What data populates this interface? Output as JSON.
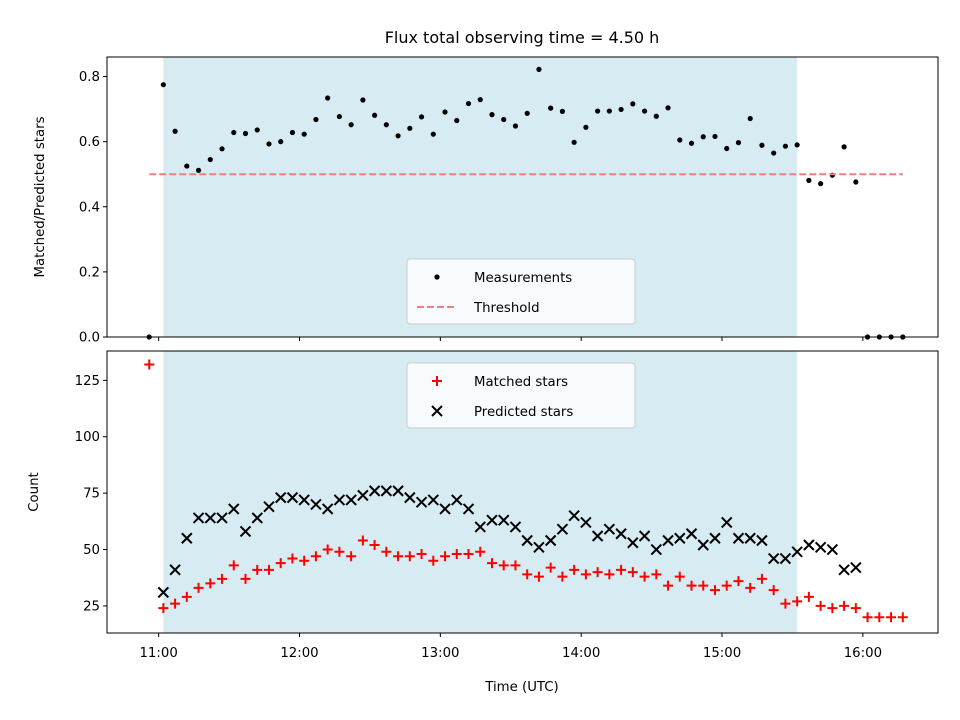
{
  "chart_data": {
    "title": "Flux total observing time = 4.50 h",
    "xlabel": "Time (UTC)",
    "x_tick_labels": [
      "11:00",
      "12:00",
      "13:00",
      "14:00",
      "15:00",
      "16:00"
    ],
    "x_ticks": [
      "11:00",
      "12:00",
      "13:00",
      "14:00",
      "15:00",
      "16:00"
    ],
    "xlim": [
      "10:38",
      "16:32"
    ],
    "shaded_span": [
      "11:02",
      "15:32"
    ],
    "colors": {
      "shade": "#add8e6",
      "threshold": "#f08080",
      "matched": "#ff0000",
      "predicted": "#000000",
      "measurements": "#000000"
    },
    "panels": [
      {
        "type": "scatter",
        "ylabel": "Matched/Predicted stars",
        "ylim": [
          0,
          0.86
        ],
        "y_ticks": [
          0.0,
          0.2,
          0.4,
          0.6,
          0.8
        ],
        "y_tick_labels": [
          "0.0",
          "0.2",
          "0.4",
          "0.6",
          "0.8"
        ],
        "legend_position": "lower center",
        "series": [
          {
            "name": "Measurements",
            "marker": "dot",
            "x": [
              "10:56",
              "11:02",
              "11:07",
              "11:12",
              "11:17",
              "11:22",
              "11:27",
              "11:32",
              "11:37",
              "11:42",
              "11:47",
              "11:52",
              "11:57",
              "12:02",
              "12:07",
              "12:12",
              "12:17",
              "12:22",
              "12:27",
              "12:32",
              "12:37",
              "12:42",
              "12:47",
              "12:52",
              "12:57",
              "13:02",
              "13:07",
              "13:12",
              "13:17",
              "13:22",
              "13:27",
              "13:32",
              "13:37",
              "13:42",
              "13:47",
              "13:52",
              "13:57",
              "14:02",
              "14:07",
              "14:12",
              "14:17",
              "14:22",
              "14:27",
              "14:32",
              "14:37",
              "14:42",
              "14:47",
              "14:52",
              "14:57",
              "15:02",
              "15:07",
              "15:12",
              "15:17",
              "15:22",
              "15:27",
              "15:32",
              "15:37",
              "15:42",
              "15:47",
              "15:52",
              "15:57",
              "16:02",
              "16:07",
              "16:12",
              "16:17"
            ],
            "y": [
              0.0,
              0.775,
              0.632,
              0.525,
              0.512,
              0.545,
              0.578,
              0.628,
              0.625,
              0.636,
              0.593,
              0.6,
              0.628,
              0.623,
              0.668,
              0.734,
              0.677,
              0.652,
              0.728,
              0.681,
              0.652,
              0.618,
              0.641,
              0.676,
              0.623,
              0.691,
              0.665,
              0.717,
              0.729,
              0.683,
              0.668,
              0.648,
              0.687,
              0.822,
              0.703,
              0.693,
              0.598,
              0.644,
              0.694,
              0.694,
              0.699,
              0.716,
              0.694,
              0.678,
              0.704,
              0.605,
              0.595,
              0.615,
              0.616,
              0.579,
              0.597,
              0.671,
              0.589,
              0.565,
              0.586,
              0.59,
              0.481,
              0.471,
              0.497,
              0.584,
              0.476,
              0.0,
              0.0,
              0.0,
              0.0
            ]
          },
          {
            "name": "Threshold",
            "type": "line",
            "style": "dashed",
            "x": [
              "10:56",
              "16:17"
            ],
            "y": [
              0.5,
              0.5
            ]
          }
        ]
      },
      {
        "type": "scatter",
        "ylabel": "Count",
        "ylim": [
          13,
          138
        ],
        "y_ticks": [
          25,
          50,
          75,
          100,
          125
        ],
        "y_tick_labels": [
          "25",
          "50",
          "75",
          "100",
          "125"
        ],
        "legend_position": "upper center",
        "series": [
          {
            "name": "Matched stars",
            "marker": "plus",
            "x": [
              "10:56",
              "11:02",
              "11:07",
              "11:12",
              "11:17",
              "11:22",
              "11:27",
              "11:32",
              "11:37",
              "11:42",
              "11:47",
              "11:52",
              "11:57",
              "12:02",
              "12:07",
              "12:12",
              "12:17",
              "12:22",
              "12:27",
              "12:32",
              "12:37",
              "12:42",
              "12:47",
              "12:52",
              "12:57",
              "13:02",
              "13:07",
              "13:12",
              "13:17",
              "13:22",
              "13:27",
              "13:32",
              "13:37",
              "13:42",
              "13:47",
              "13:52",
              "13:57",
              "14:02",
              "14:07",
              "14:12",
              "14:17",
              "14:22",
              "14:27",
              "14:32",
              "14:37",
              "14:42",
              "14:47",
              "14:52",
              "14:57",
              "15:02",
              "15:07",
              "15:12",
              "15:17",
              "15:22",
              "15:27",
              "15:32",
              "15:37",
              "15:42",
              "15:47",
              "15:52",
              "15:57",
              "16:02",
              "16:07",
              "16:12",
              "16:17"
            ],
            "y": [
              132,
              24,
              26,
              29,
              33,
              35,
              37,
              43,
              37,
              41,
              41,
              44,
              46,
              45,
              47,
              50,
              49,
              47,
              54,
              52,
              49,
              47,
              47,
              48,
              45,
              47,
              48,
              48,
              49,
              44,
              43,
              43,
              39,
              38,
              42,
              38,
              41,
              39,
              40,
              39,
              41,
              40,
              38,
              39,
              34,
              38,
              34,
              34,
              32,
              34,
              36,
              33,
              37,
              32,
              26,
              27,
              29,
              25,
              24,
              25,
              24,
              20,
              20,
              20,
              20
            ]
          },
          {
            "name": "Predicted stars",
            "marker": "x",
            "x": [
              "11:02",
              "11:07",
              "11:12",
              "11:17",
              "11:22",
              "11:27",
              "11:32",
              "11:37",
              "11:42",
              "11:47",
              "11:52",
              "11:57",
              "12:02",
              "12:07",
              "12:12",
              "12:17",
              "12:22",
              "12:27",
              "12:32",
              "12:37",
              "12:42",
              "12:47",
              "12:52",
              "12:57",
              "13:02",
              "13:07",
              "13:12",
              "13:17",
              "13:22",
              "13:27",
              "13:32",
              "13:37",
              "13:42",
              "13:47",
              "13:52",
              "13:57",
              "14:02",
              "14:07",
              "14:12",
              "14:17",
              "14:22",
              "14:27",
              "14:32",
              "14:37",
              "14:42",
              "14:47",
              "14:52",
              "14:57",
              "15:02",
              "15:07",
              "15:12",
              "15:17",
              "15:22",
              "15:27",
              "15:32",
              "15:37",
              "15:42",
              "15:47",
              "15:52",
              "15:57"
            ],
            "y": [
              31,
              41,
              55,
              64,
              64,
              64,
              68,
              58,
              64,
              69,
              73,
              73,
              72,
              70,
              68,
              72,
              72,
              74,
              76,
              76,
              76,
              73,
              71,
              72,
              68,
              72,
              68,
              60,
              63,
              63,
              60,
              54,
              51,
              54,
              59,
              65,
              62,
              56,
              59,
              57,
              53,
              56,
              50,
              54,
              55,
              57,
              52,
              55,
              62,
              55,
              55,
              54,
              46,
              46,
              49,
              52,
              51,
              50,
              41,
              42
            ]
          }
        ]
      }
    ]
  }
}
